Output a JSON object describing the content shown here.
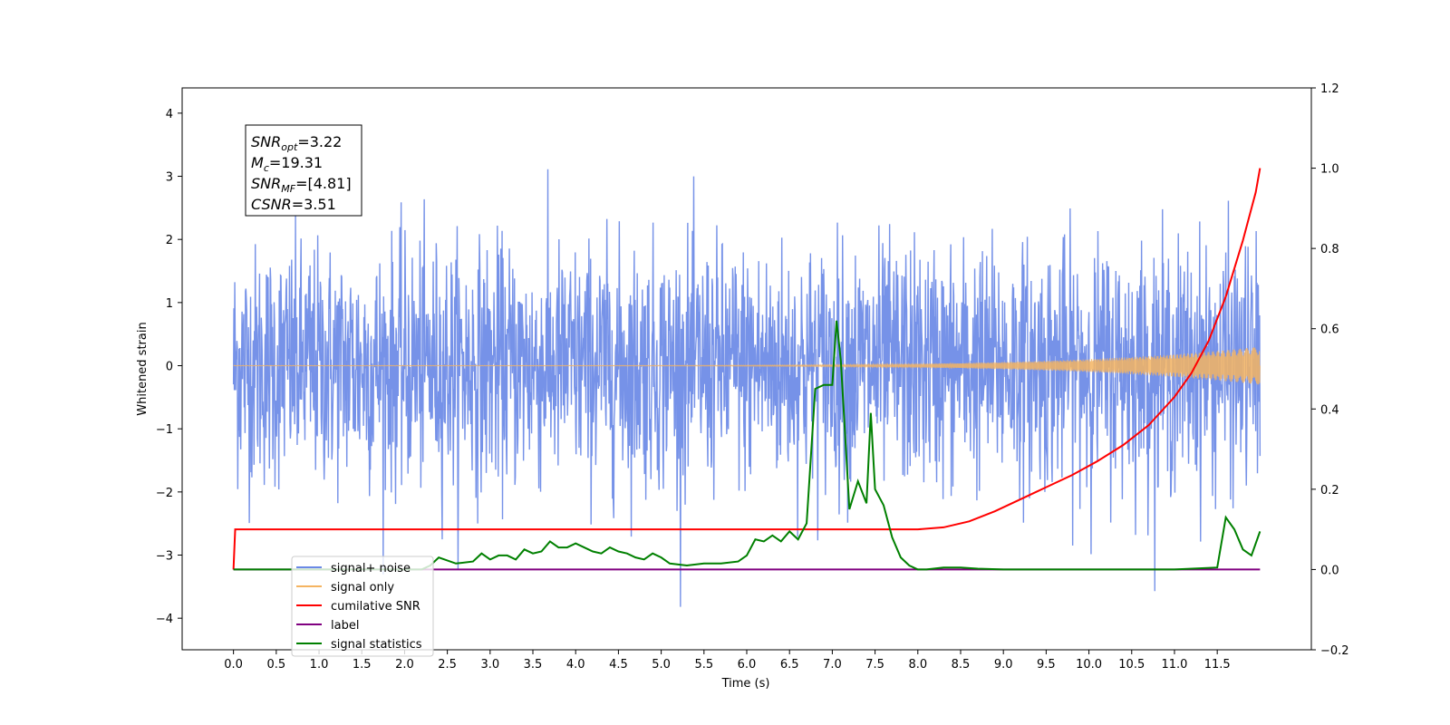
{
  "chart_data": {
    "type": "line",
    "ylabel": "Whitened strain",
    "xlabel": "Time (s)",
    "xlim": [
      -0.6,
      12.6
    ],
    "ylim": [
      -4.5,
      4.4
    ],
    "y2lim": [
      -0.2,
      1.2
    ],
    "x_ticks": [
      0.0,
      0.5,
      1.0,
      1.5,
      2.0,
      2.5,
      3.0,
      3.5,
      4.0,
      4.5,
      5.0,
      5.5,
      6.0,
      6.5,
      7.0,
      7.5,
      8.0,
      8.5,
      9.0,
      9.5,
      10.0,
      10.5,
      11.0,
      11.5
    ],
    "x_tick_labels": [
      "0.0",
      "0.5",
      "1.0",
      "1.5",
      "2.0",
      "2.5",
      "3.0",
      "3.5",
      "4.0",
      "4.5",
      "5.0",
      "5.5",
      "6.0",
      "6.5",
      "7.0",
      "7.5",
      "8.0",
      "8.5",
      "9.0",
      "9.5",
      "10.0",
      "10.5",
      "11.0",
      "11.5"
    ],
    "y_ticks": [
      -4,
      -3,
      -2,
      -1,
      0,
      1,
      2,
      3,
      4
    ],
    "y2_ticks": [
      -0.2,
      0.0,
      0.2,
      0.4,
      0.6,
      0.8,
      1.0,
      1.2
    ],
    "annotation": [
      {
        "sym": "SNR",
        "sub": "opt",
        "value": "=3.22"
      },
      {
        "sym": "M",
        "sub": "c",
        "value": "=19.31"
      },
      {
        "sym": "SNR",
        "sub": "MF",
        "value": "=[4.81]"
      },
      {
        "sym": "CSNR",
        "sub": "",
        "value": "=3.51"
      }
    ],
    "legend": {
      "placement": "lower-left",
      "entries": [
        {
          "label": "signal+ noise",
          "color": "#6a89e6"
        },
        {
          "label": "signal only",
          "color": "#f5b461"
        },
        {
          "label": "cumilative SNR",
          "color": "#ff0000"
        },
        {
          "label": "label",
          "color": "#800080"
        },
        {
          "label": "signal statistics",
          "color": "#008000"
        }
      ]
    },
    "series": [
      {
        "name": "signal+ noise",
        "axis": "left",
        "color": "#6a89e6",
        "note": "whitened noise, approx ±2.6 with peaks to ±4",
        "range": [
          0,
          12
        ]
      },
      {
        "name": "signal only",
        "axis": "left",
        "color": "#f5b461",
        "note": "chirp, amplitude ~0 rising to ~0.3 at 12 s",
        "range": [
          0,
          12
        ]
      },
      {
        "name": "cumilative SNR",
        "axis": "right",
        "color": "#ff0000",
        "x": [
          0,
          0.02,
          1,
          2,
          3,
          4,
          5,
          6,
          7,
          7.5,
          7.8,
          8.0,
          8.3,
          8.6,
          8.9,
          9.2,
          9.5,
          9.8,
          10.1,
          10.4,
          10.7,
          11.0,
          11.2,
          11.4,
          11.6,
          11.8,
          11.95,
          12.0
        ],
        "y": [
          0.0,
          0.1,
          0.1,
          0.1,
          0.1,
          0.1,
          0.1,
          0.1,
          0.1,
          0.1,
          0.1,
          0.1,
          0.105,
          0.12,
          0.145,
          0.175,
          0.205,
          0.235,
          0.27,
          0.31,
          0.36,
          0.43,
          0.49,
          0.57,
          0.68,
          0.82,
          0.94,
          1.0
        ]
      },
      {
        "name": "label",
        "axis": "right",
        "color": "#800080",
        "x": [
          0,
          12
        ],
        "y": [
          0.0,
          0.0
        ]
      },
      {
        "name": "signal statistics",
        "axis": "right",
        "color": "#008000",
        "x": [
          0,
          2.2,
          2.3,
          2.4,
          2.6,
          2.8,
          2.9,
          3.0,
          3.1,
          3.2,
          3.3,
          3.4,
          3.5,
          3.6,
          3.7,
          3.8,
          3.9,
          4.0,
          4.1,
          4.2,
          4.3,
          4.4,
          4.5,
          4.6,
          4.7,
          4.8,
          4.9,
          5.0,
          5.1,
          5.3,
          5.5,
          5.7,
          5.9,
          6.0,
          6.1,
          6.2,
          6.3,
          6.4,
          6.5,
          6.6,
          6.7,
          6.8,
          6.9,
          7.0,
          7.05,
          7.1,
          7.2,
          7.3,
          7.4,
          7.45,
          7.5,
          7.6,
          7.7,
          7.8,
          7.9,
          8.0,
          8.1,
          8.3,
          8.5,
          8.7,
          9.0,
          9.5,
          10.0,
          11.0,
          11.5,
          11.6,
          11.7,
          11.8,
          11.9,
          12.0
        ],
        "y": [
          0.0,
          0.0,
          0.01,
          0.03,
          0.015,
          0.02,
          0.04,
          0.025,
          0.035,
          0.035,
          0.025,
          0.05,
          0.04,
          0.045,
          0.07,
          0.055,
          0.055,
          0.065,
          0.055,
          0.045,
          0.04,
          0.055,
          0.045,
          0.04,
          0.03,
          0.025,
          0.04,
          0.03,
          0.015,
          0.01,
          0.015,
          0.015,
          0.02,
          0.035,
          0.075,
          0.07,
          0.085,
          0.07,
          0.095,
          0.075,
          0.115,
          0.45,
          0.46,
          0.46,
          0.62,
          0.52,
          0.15,
          0.22,
          0.165,
          0.39,
          0.2,
          0.16,
          0.08,
          0.03,
          0.01,
          0.0,
          0.0,
          0.005,
          0.005,
          0.002,
          0.0,
          0.0,
          0.0,
          0.0,
          0.005,
          0.13,
          0.1,
          0.05,
          0.035,
          0.095
        ]
      }
    ]
  }
}
